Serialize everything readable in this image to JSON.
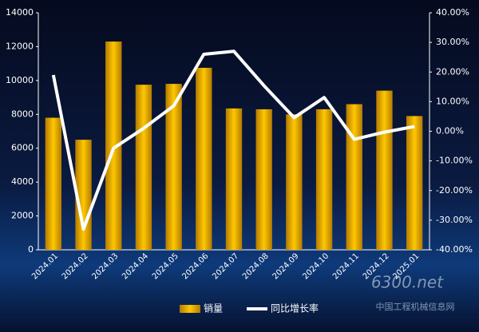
{
  "chart_data": {
    "type": "bar",
    "categories": [
      "2024.01",
      "2024.02",
      "2024.03",
      "2024.04",
      "2024.05",
      "2024.06",
      "2024.07",
      "2024.08",
      "2024.09",
      "2024.10",
      "2024.11",
      "2024.12",
      "2025.01"
    ],
    "series": [
      {
        "name": "销量",
        "color": "#f5b800",
        "values": [
          7800,
          6500,
          12300,
          9750,
          9800,
          10750,
          8350,
          8300,
          8000,
          8300,
          8600,
          9400,
          7900
        ]
      },
      {
        "name": "同比增长率",
        "color": "#ffffff",
        "axis": "y2",
        "values": [
          19,
          -33,
          -5.7,
          1,
          8.6,
          26,
          27,
          15.4,
          4.6,
          11.4,
          -2.7,
          -0.3,
          1.6
        ]
      }
    ],
    "ylim": [
      0,
      14000
    ],
    "yticks": [
      0,
      2000,
      4000,
      6000,
      8000,
      10000,
      12000,
      14000
    ],
    "y2lim": [
      -40,
      40
    ],
    "y2ticks": [
      {
        "value": -40,
        "label": "-40.00%"
      },
      {
        "value": -30,
        "label": "-30.00%"
      },
      {
        "value": -20,
        "label": "-20.00%"
      },
      {
        "value": -10,
        "label": "-10.00%"
      },
      {
        "value": 0,
        "label": "0.00%"
      },
      {
        "value": 10,
        "label": "10.00%"
      },
      {
        "value": 20,
        "label": "20.00%"
      },
      {
        "value": 30,
        "label": "30.00%"
      },
      {
        "value": 40,
        "label": "40.00%"
      }
    ],
    "watermark": "6300.net",
    "watermark_sub": "中国工程机械信息网",
    "legend": "bottom"
  }
}
